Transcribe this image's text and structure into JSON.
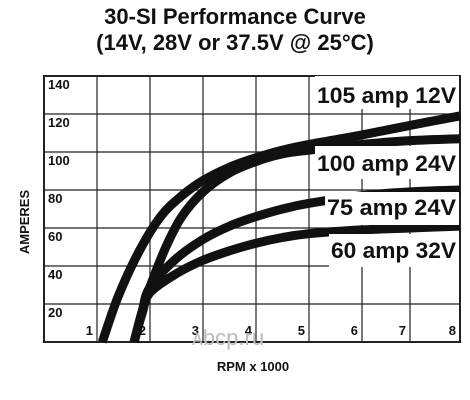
{
  "chart_data": {
    "type": "line",
    "title": "30-SI Performance Curve",
    "subtitle": "(14V, 28V or 37.5V @ 25°C)",
    "xlabel": "RPM x 1000",
    "ylabel": "AMPERES",
    "xlim": [
      0,
      8
    ],
    "ylim": [
      0,
      140
    ],
    "x_ticks": [
      "1",
      "2",
      "3",
      "4",
      "5",
      "6",
      "7",
      "8"
    ],
    "y_ticks": [
      "20",
      "40",
      "60",
      "80",
      "100",
      "120",
      "140"
    ],
    "grid": true,
    "series": [
      {
        "name": "105 amp 12V",
        "x": [
          1.1,
          1.4,
          1.8,
          2.2,
          2.6,
          3.0,
          3.5,
          4.0,
          4.5,
          5.0,
          6.0,
          7.0,
          8.0
        ],
        "y": [
          0,
          24,
          48,
          66,
          77,
          85,
          92,
          97,
          101,
          104,
          109,
          114,
          119
        ]
      },
      {
        "name": "100 amp 24V",
        "x": [
          1.7,
          1.85,
          2.0,
          2.3,
          2.6,
          3.0,
          3.5,
          4.0,
          4.5,
          5.0,
          6.0,
          7.0,
          8.0
        ],
        "y": [
          0,
          16,
          29,
          50,
          66,
          79,
          89,
          95,
          99,
          101,
          104,
          106,
          107
        ]
      },
      {
        "name": "75 amp 24V",
        "x": [
          1.7,
          1.85,
          2.0,
          2.5,
          3.0,
          3.5,
          4.0,
          4.5,
          5.0,
          6.0,
          7.0,
          8.0
        ],
        "y": [
          0,
          16,
          29,
          44,
          54,
          61,
          66,
          70,
          73,
          77,
          79,
          80
        ]
      },
      {
        "name": "60 amp 32V",
        "x": [
          1.7,
          1.85,
          2.0,
          2.5,
          3.0,
          3.5,
          4.0,
          4.5,
          5.0,
          6.0,
          7.0,
          8.0
        ],
        "y": [
          0,
          15,
          26,
          36,
          43,
          48,
          52,
          55,
          57,
          59,
          60,
          61
        ]
      }
    ],
    "annotations": [
      "105 amp 12V",
      "100 amp 24V",
      "75 amp 24V",
      "60 amp 32V"
    ],
    "watermark": "ᴀbcp.ru",
    "line_color": "#111111",
    "grid_color": "#222222"
  }
}
